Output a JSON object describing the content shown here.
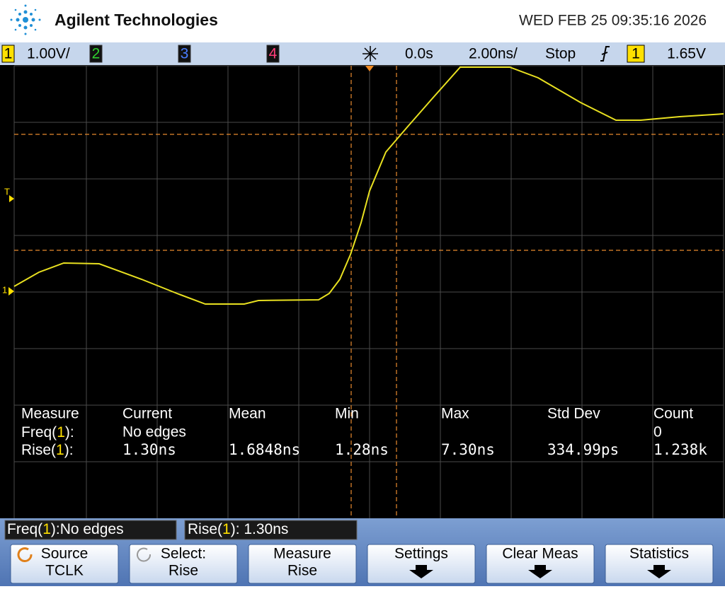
{
  "header": {
    "brand": "Agilent Technologies",
    "datetime": "WED FEB 25 09:35:16 2026"
  },
  "status_bar": {
    "channels": [
      {
        "number": "1",
        "scale": "1.00V/"
      },
      {
        "number": "2"
      },
      {
        "number": "3"
      },
      {
        "number": "4"
      }
    ],
    "time_delay": "0.0s",
    "time_scale": "2.00ns/",
    "run_state": "Stop",
    "trigger_source": "1",
    "trigger_level": "1.65V"
  },
  "markers": {
    "trigger": "T",
    "channel": "1"
  },
  "measurements": {
    "columns": [
      "Measure",
      "Current",
      "Mean",
      "Min",
      "Max",
      "Std Dev",
      "Count"
    ],
    "rows": [
      {
        "label": [
          "Freq(",
          "1",
          "):"
        ],
        "current": "No edges",
        "count": "0"
      },
      {
        "label": [
          "Rise(",
          "1",
          "):"
        ],
        "current": "1.30ns",
        "mean": "1.6848ns",
        "min": "1.28ns",
        "max": "7.30ns",
        "std_dev": "334.99ps",
        "count": "1.238k"
      }
    ]
  },
  "readouts": [
    [
      "Freq(",
      "1",
      "):No edges"
    ],
    [
      "Rise(",
      "1",
      "): 1.30ns"
    ]
  ],
  "softkeys": [
    {
      "label": "Source",
      "value": "TCLK"
    },
    {
      "label": "Select:",
      "value": "Rise"
    },
    {
      "label": "Measure",
      "value": "Rise"
    },
    {
      "label": "Settings"
    },
    {
      "label": "Clear Meas"
    },
    {
      "label": "Statistics"
    }
  ]
}
